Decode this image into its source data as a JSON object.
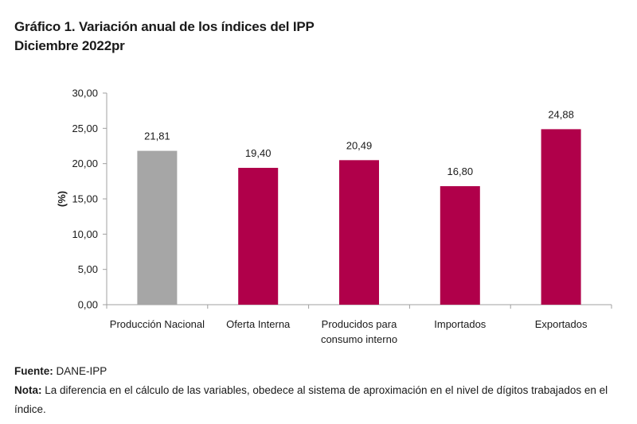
{
  "header": {
    "title_line1": "Gráfico 1. Variación anual de los índices del IPP",
    "title_line2": "Diciembre 2022pr"
  },
  "chart_data": {
    "type": "bar",
    "title": "Gráfico 1. Variación anual de los índices del IPP",
    "subtitle": "Diciembre 2022pr",
    "xlabel": "",
    "ylabel": "(%)",
    "ylim": [
      0,
      30
    ],
    "yticks": [
      0,
      5,
      10,
      15,
      20,
      25,
      30
    ],
    "ytick_labels": [
      "0,00",
      "5,00",
      "10,00",
      "15,00",
      "20,00",
      "25,00",
      "30,00"
    ],
    "grid": false,
    "legend": "none",
    "categories": [
      [
        "Producción Nacional"
      ],
      [
        "Oferta Interna"
      ],
      [
        "Producidos para",
        "consumo interno"
      ],
      [
        "Importados"
      ],
      [
        "Exportados"
      ]
    ],
    "values": [
      21.81,
      19.4,
      20.49,
      16.8,
      24.88
    ],
    "value_labels": [
      "21,81",
      "19,40",
      "20,49",
      "16,80",
      "24,88"
    ],
    "bar_colors": [
      "#a6a6a6",
      "#b0004a",
      "#b0004a",
      "#b0004a",
      "#b0004a"
    ]
  },
  "footer": {
    "source_label": "Fuente:",
    "source_text": " DANE-IPP",
    "note_label": "Nota:",
    "note_text": " La diferencia en el cálculo de las variables, obedece al sistema de aproximación en el nivel de dígitos trabajados en el índice."
  }
}
